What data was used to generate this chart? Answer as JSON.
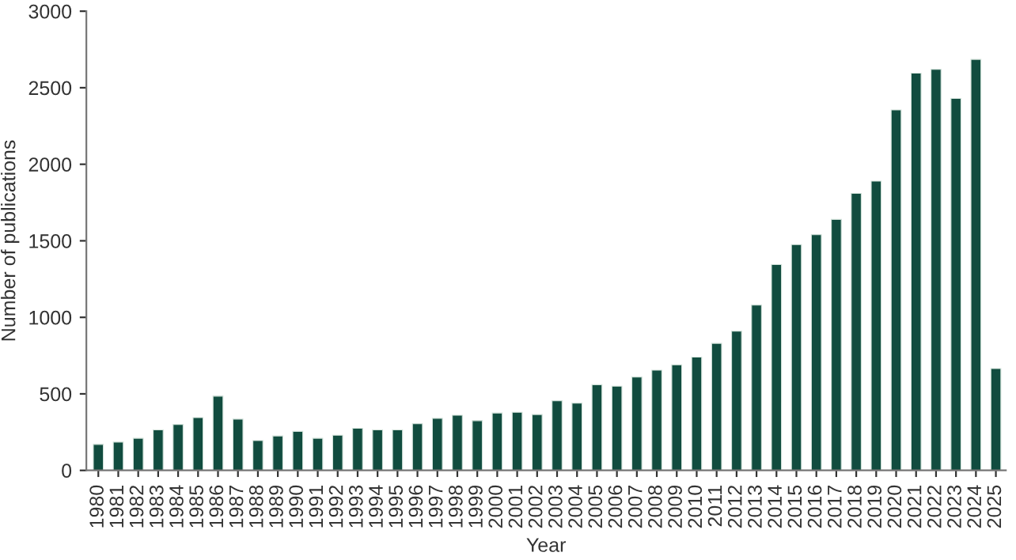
{
  "chart_data": {
    "type": "bar",
    "xlabel": "Year",
    "ylabel": "Number of publications",
    "categories": [
      "1980",
      "1981",
      "1982",
      "1983",
      "1984",
      "1985",
      "1986",
      "1987",
      "1988",
      "1989",
      "1990",
      "1991",
      "1992",
      "1993",
      "1994",
      "1995",
      "1996",
      "1997",
      "1998",
      "1999",
      "2000",
      "2001",
      "2002",
      "2003",
      "2004",
      "2005",
      "2006",
      "2007",
      "2008",
      "2009",
      "2010",
      "2011",
      "2012",
      "2013",
      "2014",
      "2015",
      "2016",
      "2017",
      "2018",
      "2019",
      "2020",
      "2021",
      "2022",
      "2023",
      "2024",
      "2025"
    ],
    "values": [
      170,
      185,
      210,
      265,
      300,
      345,
      485,
      335,
      195,
      225,
      255,
      210,
      230,
      275,
      265,
      265,
      305,
      340,
      360,
      325,
      375,
      380,
      365,
      455,
      440,
      560,
      550,
      610,
      655,
      690,
      740,
      830,
      910,
      1080,
      1345,
      1475,
      1540,
      1640,
      1810,
      1890,
      2355,
      2595,
      2620,
      2430,
      2685,
      665
    ],
    "color": "#114c3f",
    "ylim": [
      0,
      3000
    ],
    "yticks": [
      0,
      500,
      1000,
      1500,
      2000,
      2500,
      3000
    ],
    "grid": false,
    "legend": false
  }
}
